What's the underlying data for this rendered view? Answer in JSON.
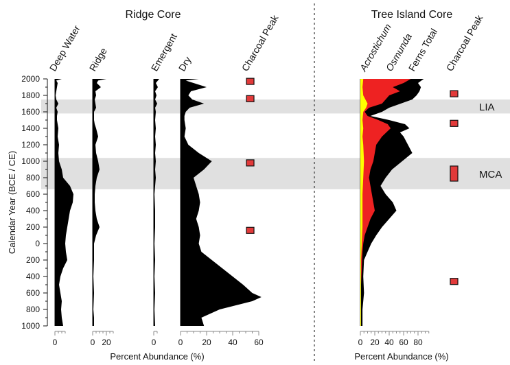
{
  "chart_data": {
    "type": "area",
    "y_axis": {
      "label": "Calendar Year (BCE / CE)",
      "ticks": [
        "2000",
        "1800",
        "1600",
        "1400",
        "1200",
        "1000",
        "800",
        "600",
        "400",
        "200",
        "0",
        "200",
        "400",
        "600",
        "800",
        "1000"
      ],
      "tick_values": [
        2000,
        1800,
        1600,
        1400,
        1200,
        1000,
        800,
        600,
        400,
        200,
        0,
        -200,
        -400,
        -600,
        -800,
        -1000
      ],
      "range": [
        -1000,
        2000
      ]
    },
    "bands": [
      {
        "label": "LIA",
        "from": 1580,
        "to": 1750
      },
      {
        "label": "MCA",
        "from": 660,
        "to": 1040
      }
    ],
    "panels": [
      {
        "title": "Ridge Core",
        "xlabel": "Percent Abundance (%)",
        "columns": [
          {
            "name": "Deep Water",
            "ticks": [
              "0"
            ],
            "xlim": [
              0,
              40
            ],
            "profile": [
              [
                2000,
                10
              ],
              [
                1980,
                2
              ],
              [
                1950,
                4
              ],
              [
                1900,
                3
              ],
              [
                1850,
                2
              ],
              [
                1800,
                1
              ],
              [
                1750,
                2
              ],
              [
                1700,
                5
              ],
              [
                1650,
                2
              ],
              [
                1600,
                4
              ],
              [
                1550,
                3
              ],
              [
                1500,
                3
              ],
              [
                1400,
                5
              ],
              [
                1300,
                4
              ],
              [
                1200,
                6
              ],
              [
                1100,
                5
              ],
              [
                1000,
                6
              ],
              [
                900,
                10
              ],
              [
                800,
                12
              ],
              [
                700,
                22
              ],
              [
                600,
                27
              ],
              [
                500,
                26
              ],
              [
                400,
                22
              ],
              [
                300,
                20
              ],
              [
                200,
                18
              ],
              [
                100,
                16
              ],
              [
                0,
                15
              ],
              [
                -100,
                16
              ],
              [
                -200,
                18
              ],
              [
                -300,
                12
              ],
              [
                -400,
                8
              ],
              [
                -500,
                6
              ],
              [
                -600,
                8
              ],
              [
                -700,
                10
              ],
              [
                -800,
                9
              ],
              [
                -900,
                10
              ],
              [
                -1000,
                12
              ]
            ]
          },
          {
            "name": "Ridge",
            "ticks": [
              "0",
              "20"
            ],
            "xlim": [
              0,
              40
            ],
            "profile": [
              [
                2000,
                20
              ],
              [
                1980,
                8
              ],
              [
                1950,
                6
              ],
              [
                1900,
                12
              ],
              [
                1850,
                4
              ],
              [
                1800,
                5
              ],
              [
                1750,
                3
              ],
              [
                1700,
                4
              ],
              [
                1650,
                5
              ],
              [
                1600,
                2
              ],
              [
                1550,
                2
              ],
              [
                1500,
                2
              ],
              [
                1450,
                3
              ],
              [
                1400,
                5
              ],
              [
                1300,
                8
              ],
              [
                1200,
                4
              ],
              [
                1100,
                5
              ],
              [
                1000,
                8
              ],
              [
                900,
                10
              ],
              [
                800,
                6
              ],
              [
                700,
                4
              ],
              [
                600,
                3
              ],
              [
                500,
                3
              ],
              [
                400,
                4
              ],
              [
                300,
                6
              ],
              [
                200,
                10
              ],
              [
                100,
                5
              ],
              [
                0,
                2
              ],
              [
                -100,
                2
              ],
              [
                -200,
                2
              ],
              [
                -400,
                1
              ],
              [
                -600,
                2
              ],
              [
                -800,
                1
              ],
              [
                -900,
                2
              ],
              [
                -1000,
                2
              ]
            ]
          },
          {
            "name": "Emergent",
            "ticks": [
              "0"
            ],
            "xlim": [
              0,
              40
            ],
            "profile": [
              [
                2000,
                8
              ],
              [
                1950,
                3
              ],
              [
                1900,
                6
              ],
              [
                1850,
                2
              ],
              [
                1800,
                4
              ],
              [
                1750,
                2
              ],
              [
                1700,
                5
              ],
              [
                1650,
                2
              ],
              [
                1600,
                3
              ],
              [
                1500,
                2
              ],
              [
                1400,
                3
              ],
              [
                1300,
                2
              ],
              [
                1200,
                3
              ],
              [
                1100,
                2
              ],
              [
                1000,
                3
              ],
              [
                900,
                2
              ],
              [
                800,
                3
              ],
              [
                700,
                2
              ],
              [
                600,
                1
              ],
              [
                400,
                2
              ],
              [
                200,
                2
              ],
              [
                0,
                1
              ],
              [
                -200,
                2
              ],
              [
                -400,
                1
              ],
              [
                -600,
                2
              ],
              [
                -800,
                1
              ],
              [
                -1000,
                2
              ]
            ]
          },
          {
            "name": "Dry",
            "ticks": [
              "0",
              "20",
              "40",
              "60"
            ],
            "xlim": [
              0,
              60
            ],
            "profile": [
              [
                2000,
                14
              ],
              [
                1980,
                4
              ],
              [
                1950,
                10
              ],
              [
                1900,
                20
              ],
              [
                1850,
                8
              ],
              [
                1800,
                6
              ],
              [
                1750,
                9
              ],
              [
                1700,
                18
              ],
              [
                1650,
                7
              ],
              [
                1600,
                4
              ],
              [
                1550,
                3
              ],
              [
                1500,
                3
              ],
              [
                1400,
                4
              ],
              [
                1300,
                3
              ],
              [
                1200,
                6
              ],
              [
                1100,
                14
              ],
              [
                1000,
                24
              ],
              [
                900,
                18
              ],
              [
                800,
                10
              ],
              [
                700,
                12
              ],
              [
                600,
                14
              ],
              [
                500,
                15
              ],
              [
                400,
                14
              ],
              [
                300,
                12
              ],
              [
                200,
                14
              ],
              [
                100,
                15
              ],
              [
                0,
                14
              ],
              [
                -100,
                16
              ],
              [
                -200,
                24
              ],
              [
                -300,
                32
              ],
              [
                -400,
                40
              ],
              [
                -500,
                48
              ],
              [
                -600,
                55
              ],
              [
                -650,
                62
              ],
              [
                -700,
                55
              ],
              [
                -800,
                30
              ],
              [
                -900,
                16
              ],
              [
                -1000,
                18
              ]
            ]
          },
          {
            "name": "Charcoal Peak",
            "peaks": [
              1970,
              1760,
              980,
              160
            ]
          }
        ]
      },
      {
        "title": "Tree Island Core",
        "xlabel": "Percent Abundance (%)",
        "ticks": [
          "0",
          "20",
          "40",
          "60",
          "80"
        ],
        "xlim": [
          0,
          95
        ],
        "columns": [
          {
            "name": "Acrostichum",
            "color": "#ffff00",
            "profile": [
              [
                2000,
                4
              ],
              [
                1900,
                3
              ],
              [
                1800,
                4
              ],
              [
                1700,
                10
              ],
              [
                1650,
                8
              ],
              [
                1600,
                4
              ],
              [
                1500,
                3
              ],
              [
                1400,
                4
              ],
              [
                1300,
                3
              ],
              [
                1200,
                4
              ],
              [
                1000,
                5
              ],
              [
                800,
                4
              ],
              [
                600,
                3
              ],
              [
                400,
                3
              ],
              [
                200,
                3
              ],
              [
                0,
                2
              ],
              [
                -200,
                1
              ],
              [
                -500,
                1
              ],
              [
                -800,
                1
              ],
              [
                -1000,
                1
              ]
            ]
          },
          {
            "name": "Osmunda",
            "color": "#ee2222",
            "profile": [
              [
                2000,
                70
              ],
              [
                1950,
                60
              ],
              [
                1900,
                45
              ],
              [
                1850,
                55
              ],
              [
                1800,
                40
              ],
              [
                1750,
                35
              ],
              [
                1700,
                30
              ],
              [
                1650,
                12
              ],
              [
                1600,
                6
              ],
              [
                1550,
                10
              ],
              [
                1500,
                25
              ],
              [
                1450,
                38
              ],
              [
                1400,
                42
              ],
              [
                1300,
                30
              ],
              [
                1200,
                22
              ],
              [
                1100,
                20
              ],
              [
                1000,
                18
              ],
              [
                900,
                14
              ],
              [
                800,
                12
              ],
              [
                700,
                14
              ],
              [
                600,
                16
              ],
              [
                500,
                18
              ],
              [
                400,
                20
              ],
              [
                300,
                14
              ],
              [
                200,
                10
              ],
              [
                100,
                6
              ],
              [
                0,
                4
              ],
              [
                -100,
                3
              ],
              [
                -300,
                2
              ],
              [
                -500,
                1
              ],
              [
                -800,
                1
              ],
              [
                -1000,
                1
              ]
            ]
          },
          {
            "name": "Ferns Total",
            "color": "#000000",
            "profile": [
              [
                2000,
                88
              ],
              [
                1950,
                80
              ],
              [
                1900,
                84
              ],
              [
                1850,
                82
              ],
              [
                1800,
                78
              ],
              [
                1750,
                72
              ],
              [
                1700,
                56
              ],
              [
                1650,
                40
              ],
              [
                1600,
                30
              ],
              [
                1550,
                14
              ],
              [
                1500,
                40
              ],
              [
                1450,
                62
              ],
              [
                1400,
                68
              ],
              [
                1350,
                55
              ],
              [
                1300,
                60
              ],
              [
                1200,
                66
              ],
              [
                1100,
                72
              ],
              [
                1000,
                58
              ],
              [
                900,
                44
              ],
              [
                800,
                35
              ],
              [
                700,
                28
              ],
              [
                600,
                35
              ],
              [
                500,
                45
              ],
              [
                400,
                50
              ],
              [
                300,
                40
              ],
              [
                200,
                30
              ],
              [
                100,
                22
              ],
              [
                0,
                15
              ],
              [
                -100,
                10
              ],
              [
                -200,
                5
              ],
              [
                -400,
                4
              ],
              [
                -600,
                5
              ],
              [
                -800,
                3
              ],
              [
                -1000,
                3
              ]
            ]
          },
          {
            "name": "Charcoal Peak",
            "peaks": [
              1820,
              1460,
              850,
              -460
            ]
          }
        ]
      }
    ]
  }
}
